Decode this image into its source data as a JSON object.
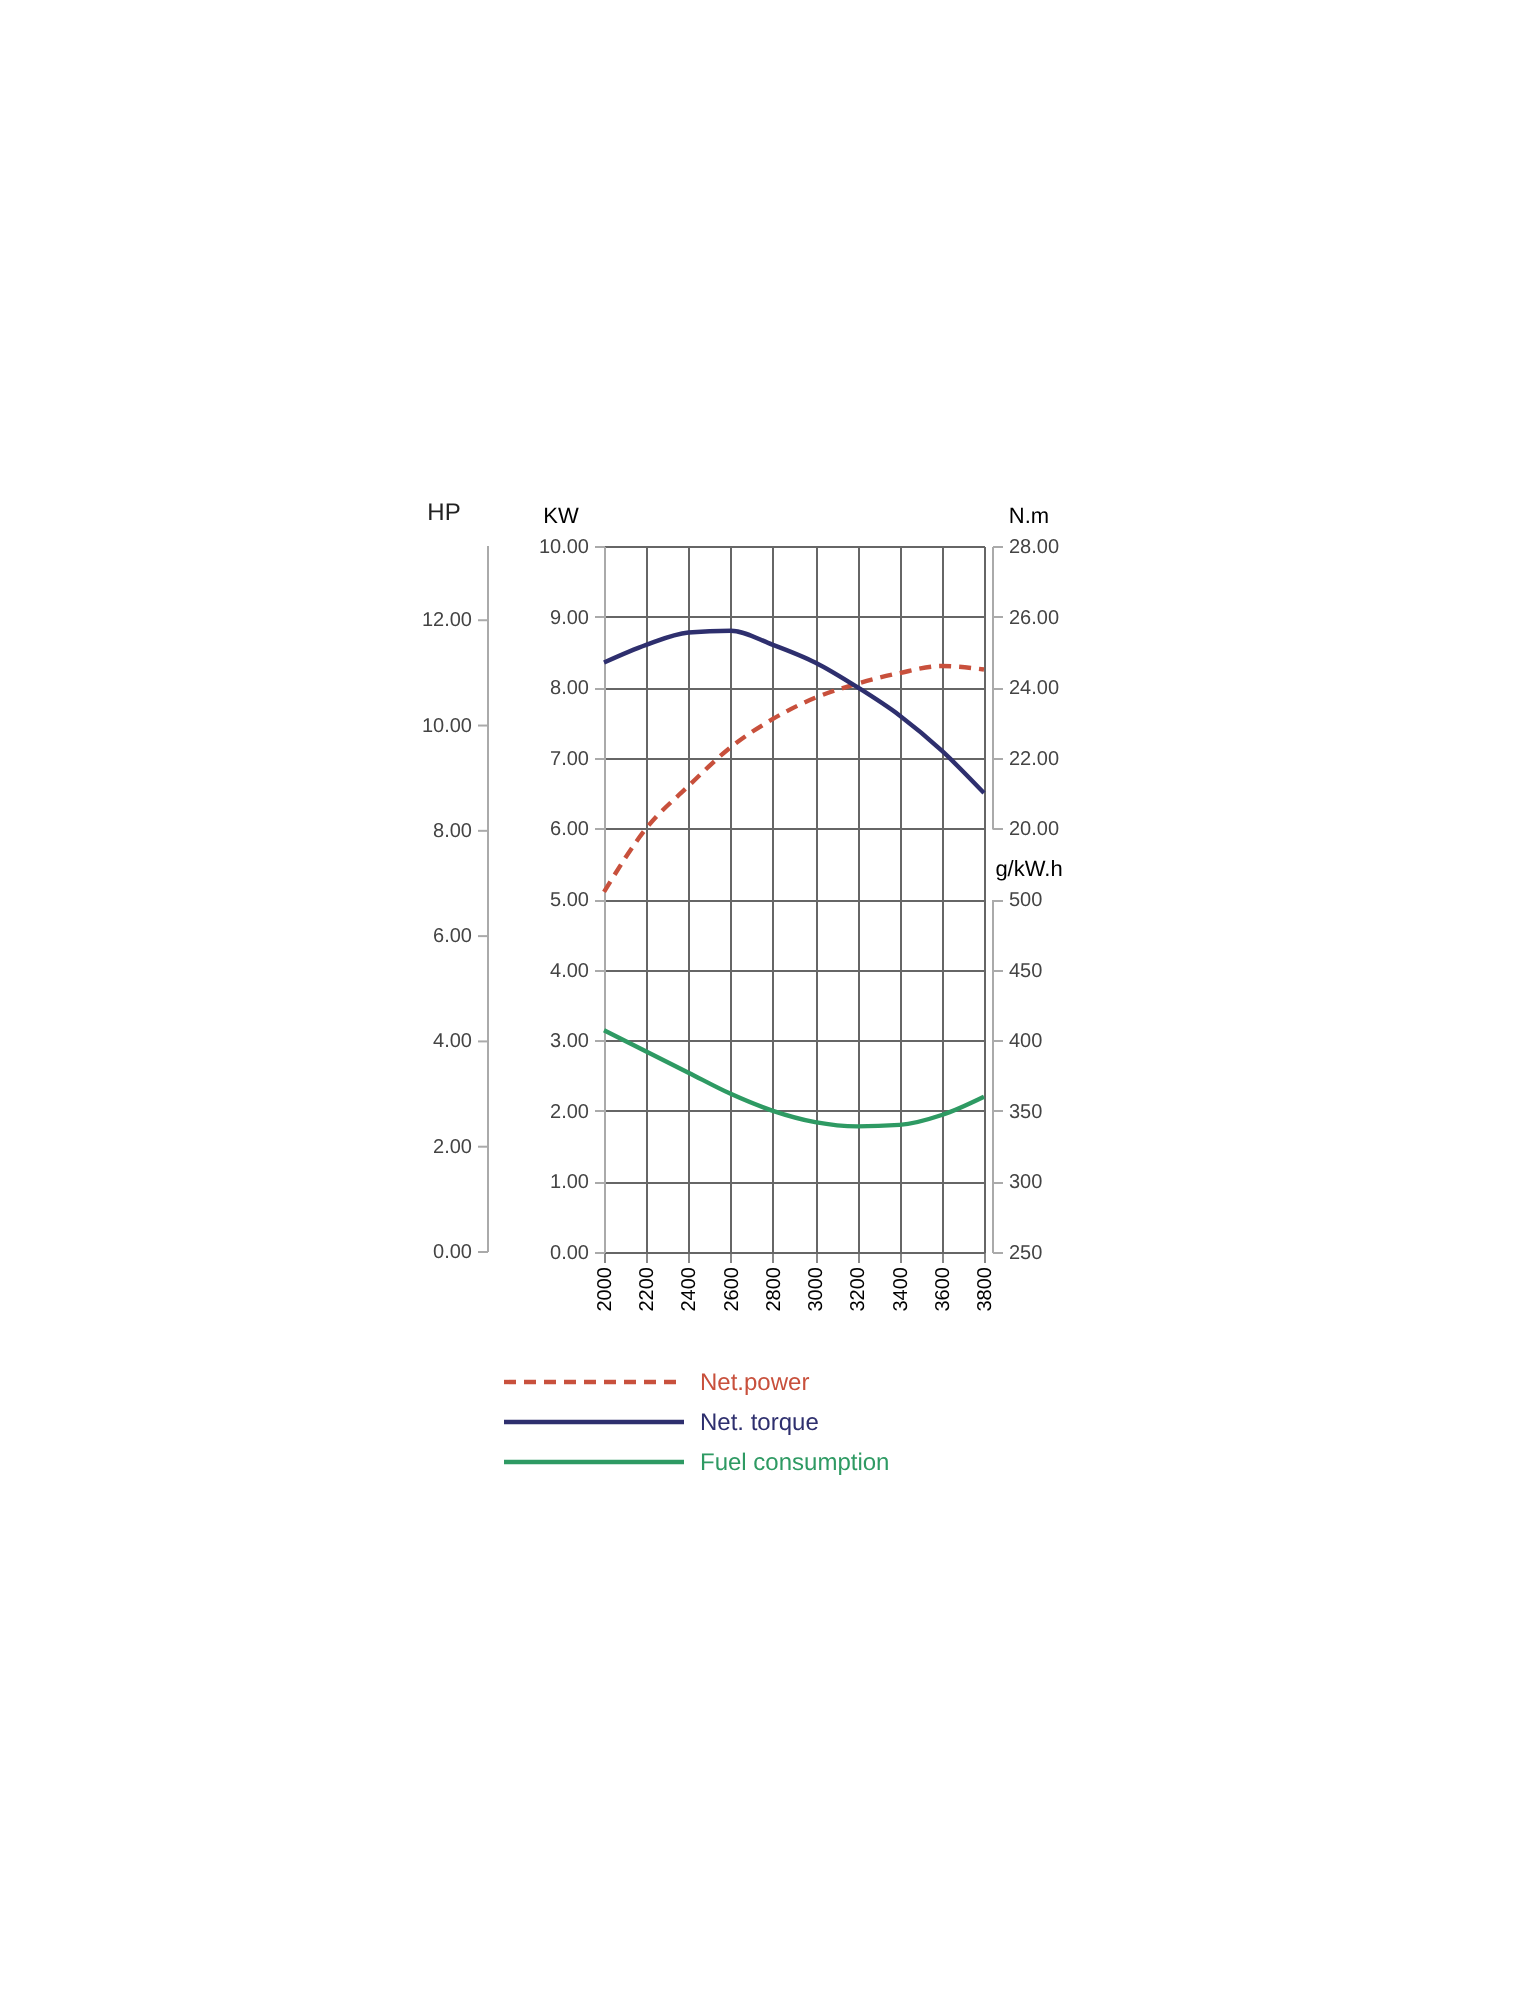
{
  "chart_data": {
    "type": "line",
    "x": [
      2000,
      2200,
      2400,
      2600,
      2800,
      3000,
      3200,
      3400,
      3600,
      3800
    ],
    "xlim": [
      2000,
      3800
    ],
    "xticks": [
      2000,
      2200,
      2400,
      2600,
      2800,
      3000,
      3200,
      3400,
      3600,
      3800
    ],
    "ylabel": "KW",
    "ylim": [
      0,
      10
    ],
    "yticks": [
      {
        "value": 0,
        "label": "0.00"
      },
      {
        "value": 1,
        "label": "1.00"
      },
      {
        "value": 2,
        "label": "2.00"
      },
      {
        "value": 3,
        "label": "3.00"
      },
      {
        "value": 4,
        "label": "4.00"
      },
      {
        "value": 5,
        "label": "5.00"
      },
      {
        "value": 6,
        "label": "6.00"
      },
      {
        "value": 7,
        "label": "7.00"
      },
      {
        "value": 8,
        "label": "8.00"
      },
      {
        "value": 9,
        "label": "9.00"
      },
      {
        "value": 10,
        "label": "10.00"
      }
    ],
    "annotations": [
      "HP",
      "0.00",
      "2.00",
      "4.00",
      "6.00",
      "8.00",
      "10.00",
      "12.00"
    ],
    "y2label": "N.m",
    "y2lim": [
      20,
      28
    ],
    "y2ticks": [
      {
        "value": 20,
        "label": "20.00"
      },
      {
        "value": 22,
        "label": "22.00"
      },
      {
        "value": 24,
        "label": "24.00"
      },
      {
        "value": 26,
        "label": "26.00"
      },
      {
        "value": 28,
        "label": "28.00"
      }
    ],
    "y3label": "g/kW.h",
    "y3lim": [
      250,
      500
    ],
    "y3ticks": [
      250,
      300,
      350,
      400,
      450,
      500
    ],
    "grid": true,
    "legend": "bottom",
    "marker": "none",
    "series": [
      {
        "name": "Net.power",
        "color": "#c8503c",
        "line_style": "dashed",
        "values": [
          5.1,
          6.0,
          6.6,
          7.15,
          7.55,
          7.85,
          8.05,
          8.2,
          8.3,
          8.25
        ]
      },
      {
        "name": "Net. torque",
        "color": "#2e2f6e",
        "line_style": "solid",
        "axis": "y2",
        "values": [
          24.7,
          25.2,
          25.55,
          25.6,
          25.2,
          24.7,
          24.0,
          23.2,
          22.2,
          21.0
        ]
      },
      {
        "name": "Fuel consumption",
        "color": "#2e9a63",
        "line_style": "solid",
        "axis": "y3",
        "values": [
          407,
          392,
          377,
          362,
          350,
          342,
          339,
          340,
          347,
          360
        ]
      }
    ]
  }
}
